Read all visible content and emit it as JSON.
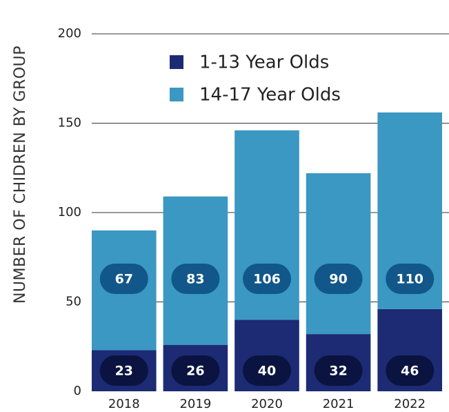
{
  "chart_data": {
    "type": "bar",
    "stacked": true,
    "categories": [
      "2018",
      "2019",
      "2020",
      "2021",
      "2022"
    ],
    "series": [
      {
        "name": "1-13 Year Olds",
        "values": [
          23,
          26,
          40,
          32,
          46
        ],
        "color": "#1c2b73"
      },
      {
        "name": "14-17 Year Olds",
        "values": [
          67,
          83,
          106,
          90,
          110
        ],
        "color": "#3a98c2"
      }
    ],
    "title": "",
    "xlabel": "",
    "ylabel": "NUMBER OF CHIDREN BY GROUP",
    "ylim": [
      0,
      200
    ],
    "yticks": [
      "0",
      "50",
      "100",
      "150",
      "200"
    ],
    "grid": true,
    "legend_position": "top-left",
    "data_labels": true,
    "label_colors": {
      "1-13 Year Olds": "#0b1340",
      "14-17 Year Olds": "#11578a"
    }
  }
}
